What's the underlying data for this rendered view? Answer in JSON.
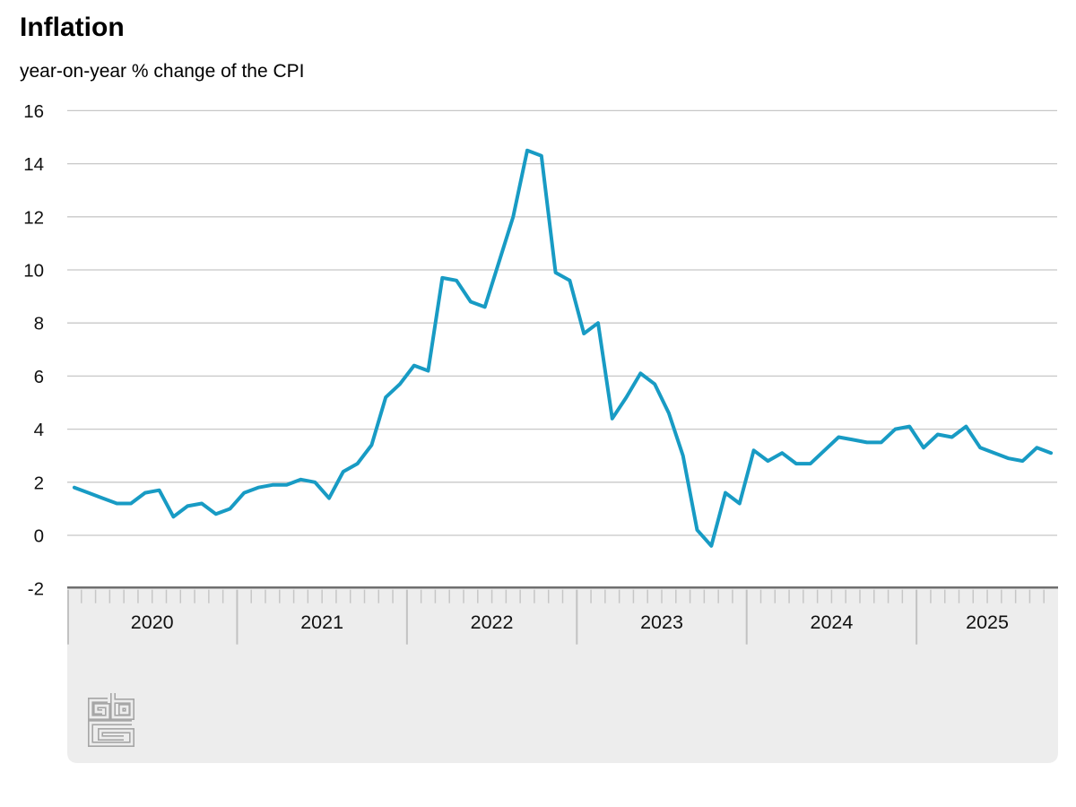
{
  "chart_data": {
    "type": "line",
    "title": "Inflation",
    "subtitle": "year-on-year % change of the CPI",
    "series_name": "CPI year-on-year % change",
    "unit": "%",
    "x_axis": {
      "type": "monthly",
      "start": "2020-01",
      "end": "2025-10"
    },
    "years": [
      {
        "label": "2020",
        "months": 12
      },
      {
        "label": "2021",
        "months": 12
      },
      {
        "label": "2022",
        "months": 12
      },
      {
        "label": "2023",
        "months": 12
      },
      {
        "label": "2024",
        "months": 12
      },
      {
        "label": "2025",
        "months": 10
      }
    ],
    "values_by_year": {
      "2020": [
        1.8,
        1.6,
        1.4,
        1.2,
        1.2,
        1.6,
        1.7,
        0.7,
        1.1,
        1.2,
        0.8,
        1.0
      ],
      "2021": [
        1.6,
        1.8,
        1.9,
        1.9,
        2.1,
        2.0,
        1.4,
        2.4,
        2.7,
        3.4,
        5.2,
        5.7
      ],
      "2022": [
        6.4,
        6.2,
        9.7,
        9.6,
        8.8,
        8.6,
        10.3,
        12.0,
        14.5,
        14.3,
        9.9,
        9.6
      ],
      "2023": [
        7.6,
        8.0,
        4.4,
        5.2,
        6.1,
        5.7,
        4.6,
        3.0,
        0.2,
        -0.4,
        1.6,
        1.2
      ],
      "2024": [
        3.2,
        2.8,
        3.1,
        2.7,
        2.7,
        3.2,
        3.7,
        3.6,
        3.5,
        3.5,
        4.0,
        4.1
      ],
      "2025": [
        3.3,
        3.8,
        3.7,
        4.1,
        3.3,
        3.1,
        2.9,
        2.8,
        3.3,
        3.1
      ]
    },
    "y_ticks": [
      16,
      14,
      12,
      10,
      8,
      6,
      4,
      2,
      0,
      -2
    ],
    "ylim": [
      -2,
      16
    ],
    "grid": "horizontal",
    "legend": "none",
    "colors": {
      "line": "#189bc4",
      "gridline": "#c8c8c8",
      "axis_line": "#6f6f6f",
      "axis_band": "#ededed",
      "tick": "#c6c6c6",
      "text": "#111111",
      "logo": "#a6a6a6"
    }
  },
  "branding": {
    "logo_name": "cbs-logo"
  }
}
